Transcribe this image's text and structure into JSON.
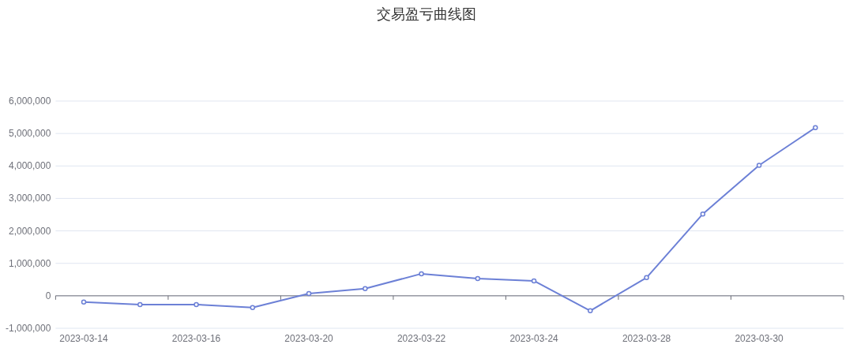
{
  "chart_data": {
    "type": "line",
    "title": "交易盈亏曲线图",
    "categories": [
      "2023-03-14",
      null,
      "2023-03-16",
      null,
      "2023-03-20",
      null,
      "2023-03-22",
      null,
      "2023-03-24",
      null,
      "2023-03-28",
      null,
      "2023-03-30",
      null
    ],
    "series": [
      {
        "color": "#6c80d6",
        "values": [
          -190000,
          -270000,
          -270000,
          -360000,
          70000,
          220000,
          680000,
          530000,
          460000,
          -460000,
          560000,
          2520000,
          4020000,
          5180000
        ]
      }
    ],
    "ylim": [
      -1000000,
      6000000
    ],
    "yticks": [
      {
        "value": -1000000,
        "label": "-1,000,000"
      },
      0,
      {
        "value": 1000000,
        "label": "1,000,000"
      },
      {
        "value": 2000000,
        "label": "2,000,000"
      },
      {
        "value": 3000000,
        "label": "3,000,000"
      },
      {
        "value": 4000000,
        "label": "4,000,000"
      },
      {
        "value": 5000000,
        "label": "5,000,000"
      },
      {
        "value": 6000000,
        "label": "6,000,000"
      }
    ],
    "grid": "y",
    "marker": "circle",
    "line_style": "solid"
  }
}
